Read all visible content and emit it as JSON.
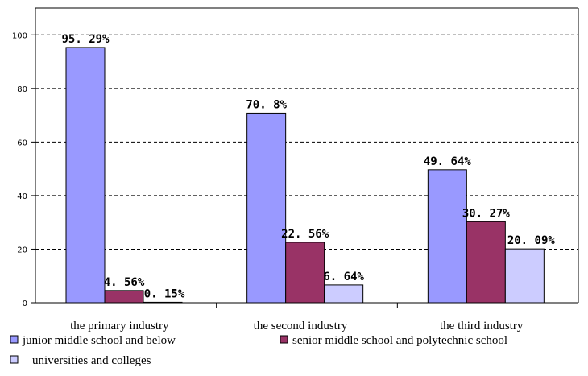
{
  "chart_data": {
    "type": "bar",
    "categories": [
      "the primary industry",
      "the second industry",
      "the third industry"
    ],
    "series": [
      {
        "name": "junior middle school and below",
        "values": [
          95.29,
          70.8,
          49.64
        ],
        "labels": [
          "95. 29%",
          "70. 8%",
          "49. 64%"
        ],
        "color": "#9999ff"
      },
      {
        "name": "senior middle school and polytechnic school",
        "values": [
          4.56,
          22.56,
          30.27
        ],
        "labels": [
          "4. 56%",
          "22. 56%",
          "30. 27%"
        ],
        "color": "#993366"
      },
      {
        "name": "universities and colleges",
        "values": [
          0.15,
          6.64,
          20.09
        ],
        "labels": [
          "0. 15%",
          "6. 64%",
          "20. 09%"
        ],
        "color": "#ccccff"
      }
    ],
    "y_ticks": [
      "0",
      "20",
      "40",
      "60",
      "80",
      "100"
    ],
    "ylim": [
      0,
      110
    ],
    "grid": true,
    "legend_position": "bottom"
  }
}
